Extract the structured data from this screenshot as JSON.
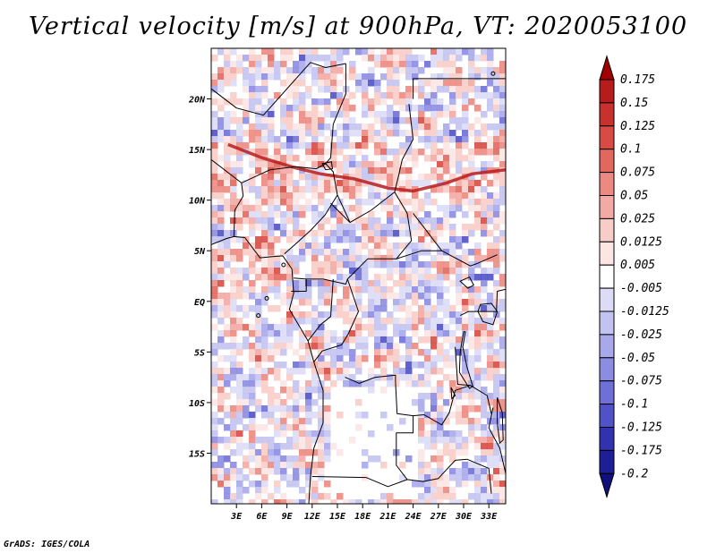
{
  "title": "Vertical velocity [m/s] at 900hPa, VT: 2020053100",
  "footer": "GrADS: IGES/COLA",
  "map": {
    "lon_range": [
      0,
      35
    ],
    "lat_range": [
      -20,
      25
    ],
    "x_ticks": [
      "3E",
      "6E",
      "9E",
      "12E",
      "15E",
      "18E",
      "21E",
      "24E",
      "27E",
      "30E",
      "33E"
    ],
    "x_tick_values": [
      3,
      6,
      9,
      12,
      15,
      18,
      21,
      24,
      27,
      30,
      33
    ],
    "y_ticks": [
      "20N",
      "15N",
      "10N",
      "5N",
      "EQ",
      "5S",
      "10S",
      "15S"
    ],
    "y_tick_values": [
      20,
      15,
      10,
      5,
      0,
      -5,
      -10,
      -15
    ]
  },
  "colorbar": {
    "labels": [
      "0.175",
      "0.15",
      "0.125",
      "0.1",
      "0.075",
      "0.05",
      "0.025",
      "0.0125",
      "0.005",
      "-0.005",
      "-0.0125",
      "-0.025",
      "-0.05",
      "-0.075",
      "-0.1",
      "-0.125",
      "-0.175",
      "-0.2"
    ],
    "colors": [
      "#a00000",
      "#b71c1c",
      "#c8322e",
      "#d84a44",
      "#e2685f",
      "#ec8a82",
      "#f4aaa4",
      "#f8cdc8",
      "#fce6e3",
      "#ffffff",
      "#dcdcf6",
      "#c3c3f1",
      "#a8a8eb",
      "#8c8ce3",
      "#6f6fd8",
      "#5151c8",
      "#3232b0",
      "#1e1e96",
      "#10107a"
    ]
  }
}
